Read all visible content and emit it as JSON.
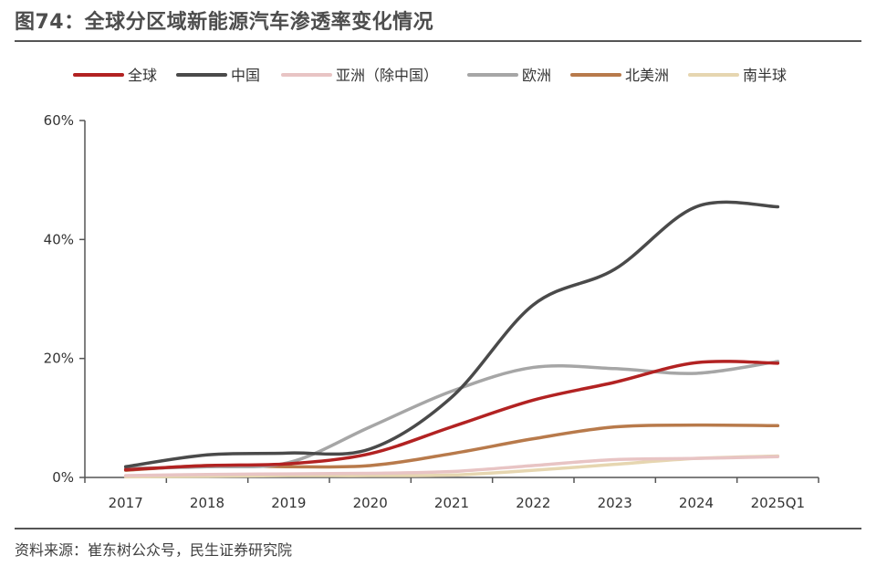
{
  "header": {
    "title": "图74：全球分区域新能源汽车渗透率变化情况"
  },
  "footer": {
    "source": "资料来源：崔东树公众号，民生证券研究院"
  },
  "chart_data": {
    "type": "line",
    "x": [
      "2017",
      "2018",
      "2019",
      "2020",
      "2021",
      "2022",
      "2023",
      "2024",
      "2025Q1"
    ],
    "ylim": [
      0,
      60
    ],
    "yticks": [
      0,
      20,
      40,
      60
    ],
    "ytick_labels": [
      "0%",
      "20%",
      "40%",
      "60%"
    ],
    "legend_position": "top",
    "grid": false,
    "series": [
      {
        "name": "全球",
        "color": "#b22222",
        "values": [
          1.3,
          2.0,
          2.3,
          4.0,
          8.5,
          13.0,
          16.0,
          19.3,
          19.2
        ]
      },
      {
        "name": "中国",
        "color": "#4a4a4a",
        "values": [
          1.8,
          3.8,
          4.1,
          4.8,
          13.5,
          29.0,
          35.0,
          45.5,
          45.5
        ]
      },
      {
        "name": "亚洲（除中国）",
        "color": "#e8c4c4",
        "values": [
          0.3,
          0.5,
          0.6,
          0.7,
          1.0,
          2.0,
          3.0,
          3.2,
          3.5
        ]
      },
      {
        "name": "欧洲",
        "color": "#a6a6a6",
        "values": [
          1.5,
          1.8,
          2.5,
          8.5,
          14.5,
          18.5,
          18.3,
          17.5,
          19.5
        ]
      },
      {
        "name": "北美洲",
        "color": "#b87a4b",
        "values": [
          1.2,
          2.0,
          1.8,
          2.0,
          4.0,
          6.5,
          8.5,
          8.8,
          8.7
        ]
      },
      {
        "name": "南半球",
        "color": "#e6d6b0",
        "values": [
          0.1,
          0.2,
          0.3,
          0.3,
          0.4,
          1.2,
          2.2,
          3.2,
          3.6
        ]
      }
    ]
  }
}
